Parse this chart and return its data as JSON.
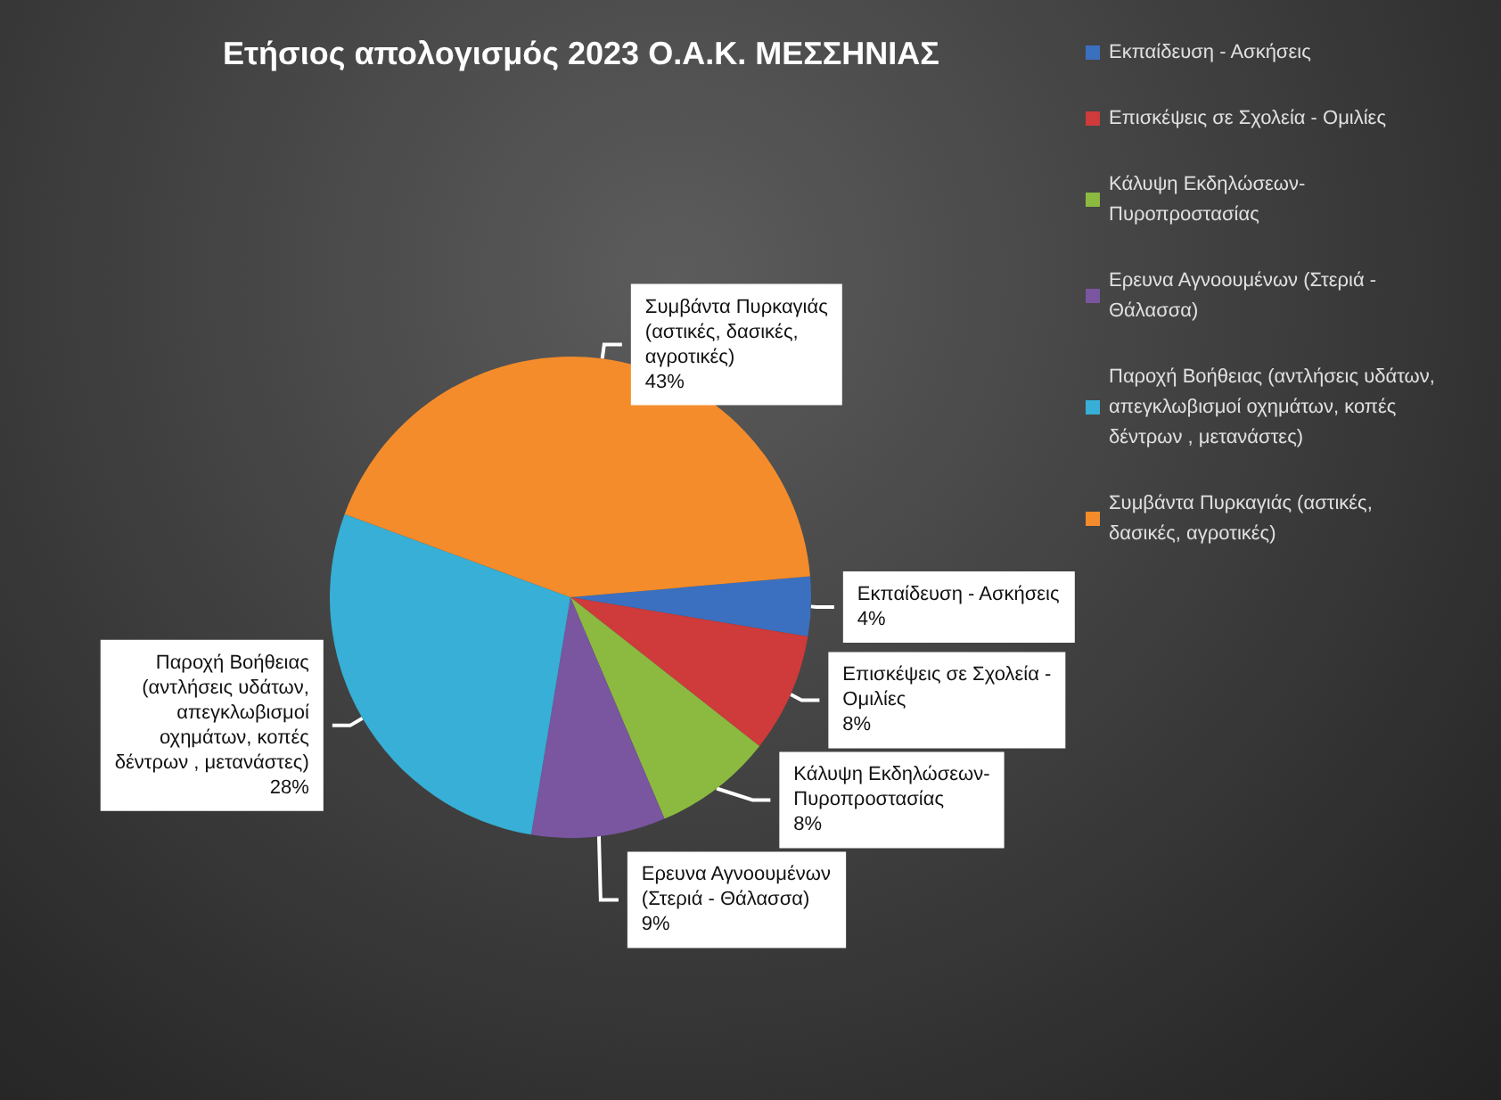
{
  "chart_data": {
    "type": "pie",
    "title": "Ετήσιος απολογισμός 2023 Ο.Α.Κ. ΜΕΣΣΗΝΙΑΣ",
    "categories": [
      "Εκπαίδευση - Ασκήσεις",
      "Επισκέψεις σε Σχολεία - Ομιλίες",
      "Κάλυψη Εκδηλώσεων-Πυροπροστασίας",
      "Ερευνα Αγνοουμένων (Στεριά - Θάλασσα)",
      "Παροχή Βοήθειας (αντλήσεις υδάτων, απεγκλωβισμοί οχημάτων, κοπές δέντρων , μετανάστες)",
      "Συμβάντα Πυρκαγιάς (αστικές, δασικές, αγροτικές)"
    ],
    "values": [
      4,
      8,
      8,
      9,
      28,
      43
    ],
    "value_labels": [
      "4%",
      "8%",
      "8%",
      "9%",
      "28%",
      "43%"
    ],
    "colors": [
      "#3b70c0",
      "#cf3a3b",
      "#8cb940",
      "#7a55a0",
      "#37afd6",
      "#f48c2c"
    ],
    "legend": "top right"
  }
}
